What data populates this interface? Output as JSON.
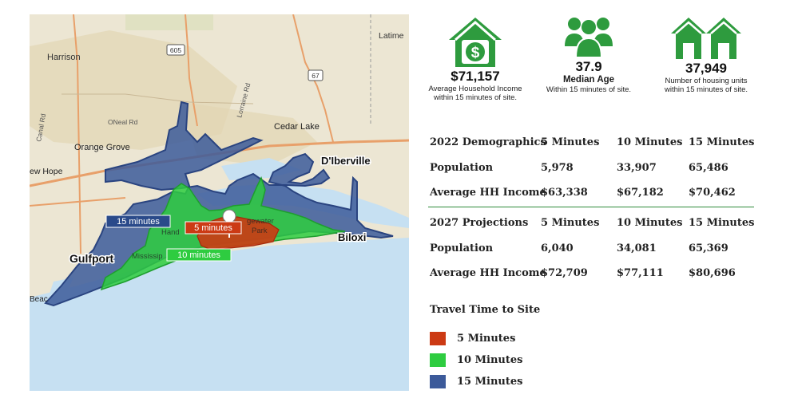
{
  "map": {
    "places": {
      "latimer": "Latime",
      "harrison": "Harrison",
      "route_605": "605",
      "route_67": "67",
      "canal_rd": "Canal Rd",
      "oneal_rd": "ONeal Rd",
      "lorraine_rd": "Lorraine Rd",
      "cedar_lake": "Cedar Lake",
      "orange_grove": "Orange Grove",
      "new_hope": "ew Hope",
      "diberville": "D'Iberville",
      "biloxi": "Biloxi",
      "gulfport": "Gulfport",
      "beach": "Beac",
      "handsboro": "Hand",
      "edgewater": "gewater",
      "park": "Park",
      "mississippi": "Mississip"
    },
    "zone_labels": {
      "min15": "15 minutes",
      "min5": "5 minutes",
      "min10": "10 minutes"
    },
    "colors": {
      "water": "#c6e0f2",
      "land": "#ece6d3",
      "urban": "#e2d5b4",
      "road": "#e8a06a",
      "min5": "#cc3a14",
      "min10": "#2ecc40",
      "min15": "#3c5a9a"
    }
  },
  "stats": [
    {
      "icon": "house-dollar-icon",
      "value": "$71,157",
      "label1": "Average Household Income",
      "label2": "within 15 minutes of site."
    },
    {
      "icon": "people-group-icon",
      "value": "37.9",
      "label1": "Median Age",
      "label2": "Within 15 minutes of site."
    },
    {
      "icon": "houses-icon",
      "value": "37,949",
      "label1": "Number of housing units",
      "label2": "within 15 minutes of site."
    }
  ],
  "demographics_2022": {
    "header": [
      "2022 Demographics",
      "5 Minutes",
      "10 Minutes",
      "15 Minutes"
    ],
    "rows": [
      [
        "Population",
        "5,978",
        "33,907",
        "65,486"
      ],
      [
        "Average HH Income",
        "$63,338",
        "$67,182",
        "$70,462"
      ]
    ]
  },
  "projections_2027": {
    "header": [
      "2027 Projections",
      "5 Minutes",
      "10 Minutes",
      "15 Minutes"
    ],
    "rows": [
      [
        "Population",
        "6,040",
        "34,081",
        "65,369"
      ],
      [
        "Average HH Income",
        "$72,709",
        "$77,111",
        "$80,696"
      ]
    ]
  },
  "legend": {
    "title": "Travel Time to Site",
    "items": [
      {
        "label": "5 Minutes",
        "color": "#cc3a14"
      },
      {
        "label": "10 Minutes",
        "color": "#2ecc40"
      },
      {
        "label": "15 Minutes",
        "color": "#3c5a9a"
      }
    ]
  }
}
